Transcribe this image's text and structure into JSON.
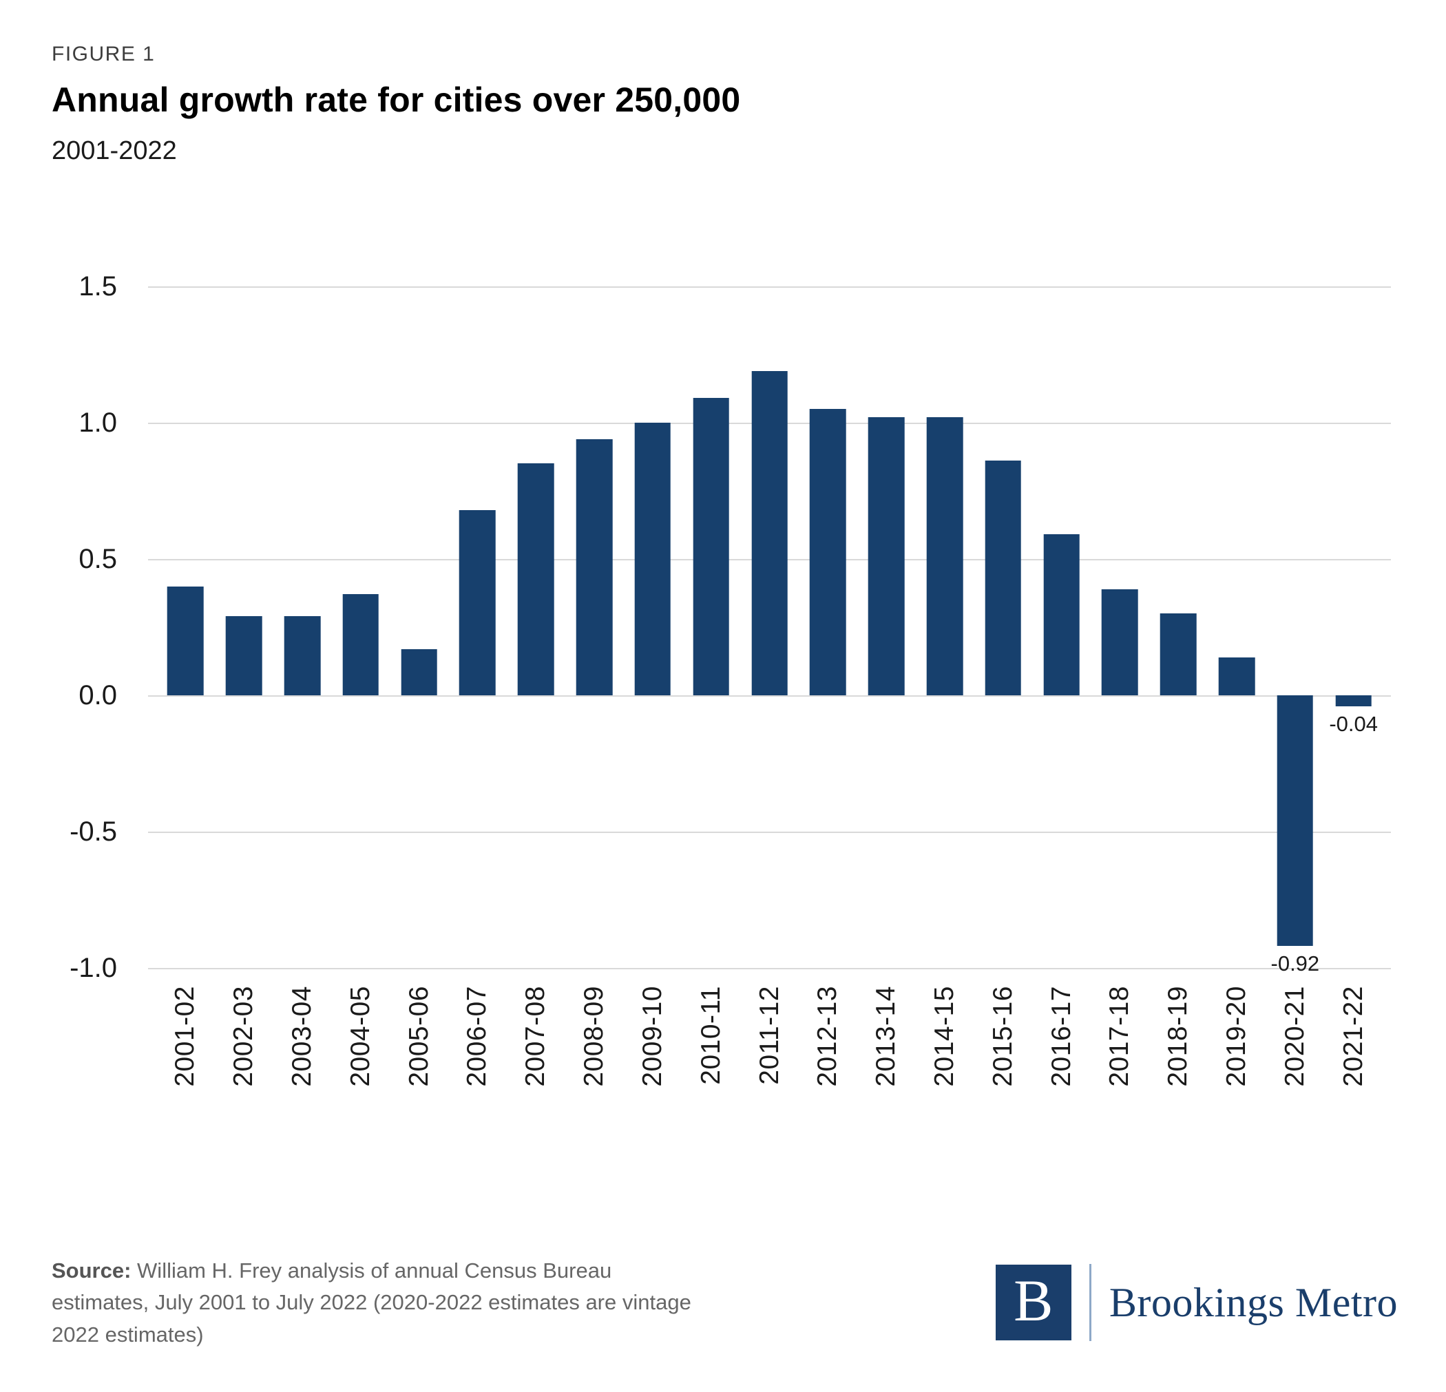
{
  "header": {
    "figure_label": "FIGURE 1",
    "title": "Annual growth rate for cities over 250,000",
    "subtitle": "2001-2022"
  },
  "chart_data": {
    "type": "bar",
    "title": "Annual growth rate for cities over 250,000",
    "subtitle": "2001-2022",
    "categories": [
      "2001-02",
      "2002-03",
      "2003-04",
      "2004-05",
      "2005-06",
      "2006-07",
      "2007-08",
      "2008-09",
      "2009-10",
      "2010-11",
      "2011-12",
      "2012-13",
      "2013-14",
      "2014-15",
      "2015-16",
      "2016-17",
      "2017-18",
      "2018-19",
      "2019-20",
      "2020-21",
      "2021-22"
    ],
    "values": [
      0.4,
      0.29,
      0.29,
      0.37,
      0.17,
      0.68,
      0.85,
      0.94,
      1.0,
      1.09,
      1.19,
      1.05,
      1.02,
      1.02,
      0.86,
      0.59,
      0.39,
      0.3,
      0.14,
      -0.92,
      -0.04
    ],
    "value_labels": [
      null,
      null,
      null,
      null,
      null,
      null,
      null,
      null,
      null,
      null,
      null,
      null,
      null,
      null,
      null,
      null,
      null,
      null,
      null,
      "-0.92",
      "-0.04"
    ],
    "xlabel": "",
    "ylabel": "",
    "ylim": [
      -1.0,
      1.5
    ],
    "yticks": [
      1.5,
      1.0,
      0.5,
      0.0,
      -0.5,
      -1.0
    ],
    "ytick_labels": [
      "1.5",
      "1.0",
      "0.5",
      "0.0",
      "-0.5",
      "-1.0"
    ],
    "bar_color": "#17406d",
    "gridline_color": "#d9d9d9",
    "grid": true,
    "legend": "none"
  },
  "footer": {
    "source_label": "Source:",
    "source_text": "William H. Frey analysis of annual Census Bureau estimates, July 2001 to July 2022 (2020-2022 estimates are vintage 2022 estimates)",
    "logo_letter": "B",
    "brand": "Brookings Metro",
    "brand_color": "#1a3e6b"
  }
}
